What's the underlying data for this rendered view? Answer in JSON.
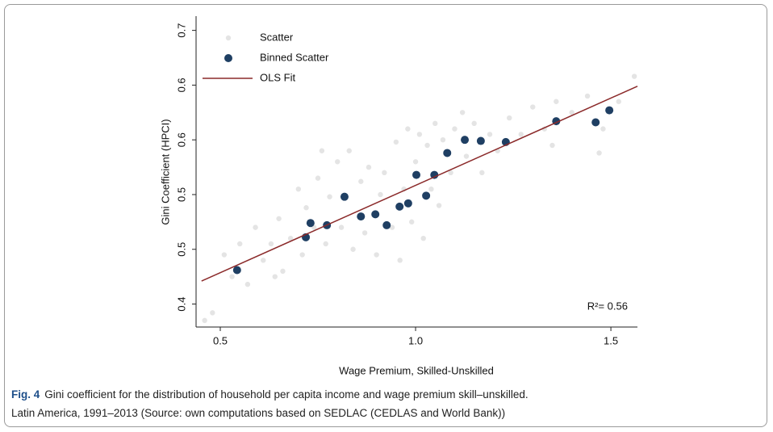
{
  "chart_data": {
    "type": "scatter",
    "xlabel": "Wage Premium, Skilled-Unskilled",
    "ylabel": "Gini Coefficient (HPCI)",
    "annotation": "R²= 0.56",
    "xlim": [
      0.438,
      1.568
    ],
    "ylim": [
      0.379,
      0.663
    ],
    "xticks": [
      0.5,
      {
        "value": 1,
        "label": "1.0"
      },
      1.5
    ],
    "yticks": [
      0.4,
      {
        "value": 0.45,
        "label": "0.5"
      },
      0.5,
      {
        "value": 0.55,
        "label": "0.6"
      },
      0.6,
      {
        "value": 0.65,
        "label": "0.7"
      }
    ],
    "legend": "upper left",
    "series": [
      {
        "name": "Scatter",
        "color": "#e4e4e4",
        "x": [
          0.46,
          0.48,
          0.51,
          0.53,
          0.55,
          0.57,
          0.59,
          0.61,
          0.63,
          0.65,
          0.66,
          0.68,
          0.7,
          0.71,
          0.72,
          0.74,
          0.75,
          0.77,
          0.78,
          0.8,
          0.81,
          0.83,
          0.84,
          0.86,
          0.87,
          0.88,
          0.9,
          0.91,
          0.92,
          0.94,
          0.95,
          0.96,
          0.97,
          0.98,
          0.99,
          1.0,
          1.01,
          1.02,
          1.03,
          1.04,
          1.05,
          1.06,
          1.07,
          1.09,
          1.1,
          1.12,
          1.13,
          1.15,
          1.17,
          1.19,
          1.21,
          1.24,
          1.27,
          1.3,
          1.33,
          1.36,
          1.4,
          1.44,
          1.48,
          1.52,
          1.56,
          1.47,
          1.35,
          0.76,
          0.64
        ],
        "values": [
          0.385,
          0.392,
          0.445,
          0.425,
          0.455,
          0.418,
          0.47,
          0.44,
          0.455,
          0.478,
          0.43,
          0.46,
          0.505,
          0.445,
          0.488,
          0.47,
          0.515,
          0.455,
          0.498,
          0.53,
          0.47,
          0.54,
          0.45,
          0.512,
          0.465,
          0.525,
          0.445,
          0.5,
          0.52,
          0.47,
          0.548,
          0.44,
          0.505,
          0.56,
          0.475,
          0.53,
          0.555,
          0.46,
          0.545,
          0.505,
          0.565,
          0.49,
          0.55,
          0.52,
          0.56,
          0.575,
          0.535,
          0.565,
          0.52,
          0.555,
          0.54,
          0.57,
          0.555,
          0.58,
          0.56,
          0.585,
          0.575,
          0.59,
          0.56,
          0.585,
          0.608,
          0.538,
          0.545,
          0.54,
          0.425
        ]
      },
      {
        "name": "Binned Scatter",
        "color": "#1f3f63",
        "x": [
          0.543,
          0.719,
          0.731,
          0.773,
          0.818,
          0.86,
          0.897,
          0.926,
          0.959,
          0.981,
          1.002,
          1.027,
          1.048,
          1.081,
          1.126,
          1.167,
          1.231,
          1.36,
          1.461,
          1.496
        ],
        "values": [
          0.431,
          0.461,
          0.474,
          0.472,
          0.498,
          0.48,
          0.482,
          0.472,
          0.489,
          0.492,
          0.518,
          0.499,
          0.518,
          0.538,
          0.55,
          0.549,
          0.548,
          0.567,
          0.566,
          0.577
        ]
      },
      {
        "name": "OLS Fit",
        "type": "line",
        "color": "#8b2a2a",
        "x": [
          0.452,
          1.568
        ],
        "values": [
          0.421,
          0.599
        ]
      }
    ]
  },
  "figure_caption": {
    "label": "Fig. 4",
    "lines": [
      "Gini coefficient for the distribution of household per capita income and wage premium skill–unskilled.",
      "Latin America, 1991–2013 (Source: own computations based on SEDLAC (CEDLAS and World Bank))"
    ]
  }
}
